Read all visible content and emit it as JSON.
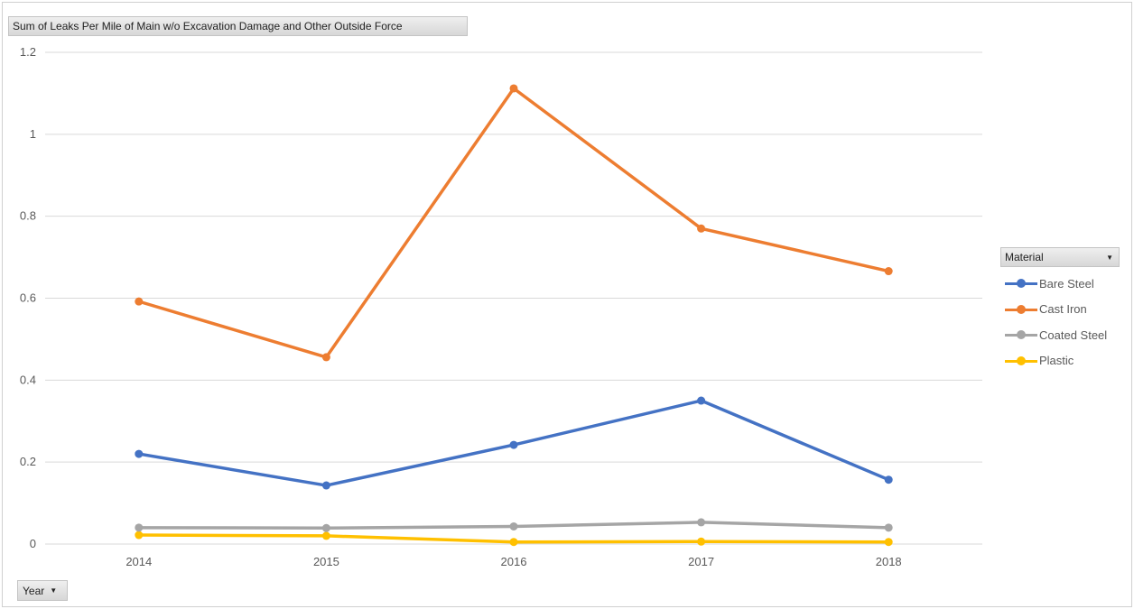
{
  "chart_data": {
    "type": "line",
    "title": "Sum of Leaks Per Mile of Main w/o Excavation Damage and Other Outside Force",
    "xlabel": "Year",
    "ylabel": "",
    "categories": [
      "2014",
      "2015",
      "2016",
      "2017",
      "2018"
    ],
    "ylim": [
      0,
      1.2
    ],
    "yticks": [
      0,
      0.2,
      0.4,
      0.6,
      0.8,
      1,
      1.2
    ],
    "ytick_labels": [
      "0",
      "0.2",
      "0.4",
      "0.6",
      "0.8",
      "1",
      "1.2"
    ],
    "grid": true,
    "legend_title": "Material",
    "legend_position": "right",
    "series": [
      {
        "name": "Bare Steel",
        "color": "#4472C4",
        "values": [
          0.22,
          0.143,
          0.242,
          0.35,
          0.157
        ]
      },
      {
        "name": "Cast Iron",
        "color": "#ED7D31",
        "values": [
          0.592,
          0.456,
          1.112,
          0.77,
          0.666
        ]
      },
      {
        "name": "Coated Steel",
        "color": "#A5A5A5",
        "values": [
          0.04,
          0.039,
          0.043,
          0.053,
          0.04
        ]
      },
      {
        "name": "Plastic",
        "color": "#FFC000",
        "values": [
          0.022,
          0.02,
          0.005,
          0.006,
          0.005
        ]
      }
    ]
  },
  "controls": {
    "value_field_label": "Sum of Leaks Per Mile of Main w/o Excavation Damage and Other Outside Force",
    "axis_field_label": "Year",
    "legend_field_label": "Material",
    "dropdown_icon": "caret-down-icon"
  }
}
